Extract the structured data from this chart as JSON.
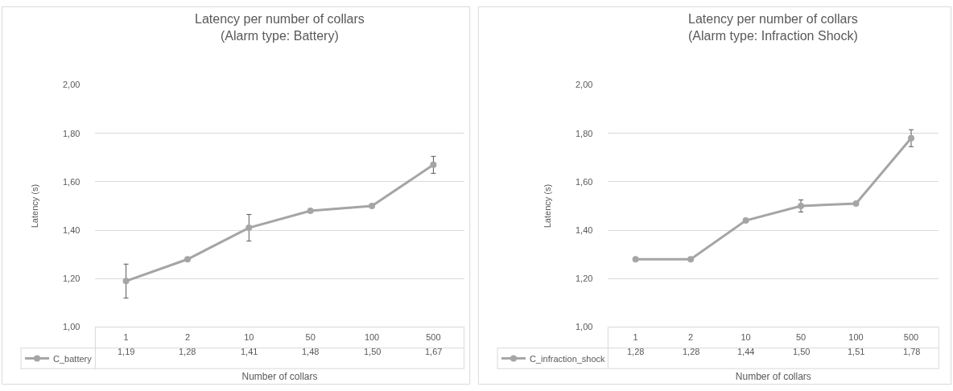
{
  "chart_data": [
    {
      "type": "line",
      "title": "Latency per number of collars\n(Alarm type: Battery)",
      "xlabel": "Number of collars",
      "ylabel": "Latency (s)",
      "categories": [
        "1",
        "2",
        "10",
        "50",
        "100",
        "500"
      ],
      "series": [
        {
          "name": "C_battery",
          "color": "#a5a5a5",
          "values": [
            1.19,
            1.28,
            1.41,
            1.48,
            1.5,
            1.67
          ],
          "value_labels": [
            "1,19",
            "1,28",
            "1,41",
            "1,48",
            "1,50",
            "1,67"
          ],
          "errors": [
            0.07,
            null,
            0.055,
            null,
            null,
            0.035
          ]
        }
      ],
      "ylim": [
        1.0,
        2.0
      ],
      "yticks": [
        {
          "value": 1.0,
          "label": "1,00"
        },
        {
          "value": 1.2,
          "label": "1,20"
        },
        {
          "value": 1.4,
          "label": "1,40"
        },
        {
          "value": 1.6,
          "label": "1,60"
        },
        {
          "value": 1.8,
          "label": "1,80"
        },
        {
          "value": 2.0,
          "label": "2,00"
        }
      ],
      "grid": "y",
      "legend": "bottom left",
      "marker": "circle",
      "line_style": "solid"
    },
    {
      "type": "line",
      "title": "Latency per number of collars\n(Alarm type: Infraction Shock)",
      "xlabel": "Number of collars",
      "ylabel": "Latency (s)",
      "categories": [
        "1",
        "2",
        "10",
        "50",
        "100",
        "500"
      ],
      "series": [
        {
          "name": "C_infraction_shock",
          "color": "#a5a5a5",
          "values": [
            1.28,
            1.28,
            1.44,
            1.5,
            1.51,
            1.78
          ],
          "value_labels": [
            "1,28",
            "1,28",
            "1,44",
            "1,50",
            "1,51",
            "1,78"
          ],
          "errors": [
            null,
            null,
            null,
            0.025,
            null,
            0.035
          ]
        }
      ],
      "ylim": [
        1.0,
        2.0
      ],
      "yticks": [
        {
          "value": 1.0,
          "label": "1,00"
        },
        {
          "value": 1.2,
          "label": "1,20"
        },
        {
          "value": 1.4,
          "label": "1,40"
        },
        {
          "value": 1.6,
          "label": "1,60"
        },
        {
          "value": 1.8,
          "label": "1,80"
        },
        {
          "value": 2.0,
          "label": "2,00"
        }
      ],
      "grid": "y",
      "legend": "bottom left",
      "marker": "circle",
      "line_style": "solid"
    }
  ]
}
